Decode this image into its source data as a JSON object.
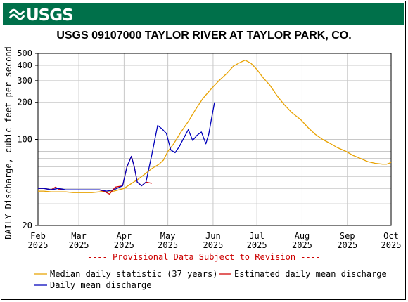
{
  "logo_text": "USGS",
  "colors": {
    "banner": "#00704a",
    "median": "#e8a202",
    "estimated": "#d10000",
    "daily": "#0000bb",
    "grid": "#c8c8c8",
    "provisional": "#cc0000"
  },
  "chart_data": {
    "type": "line",
    "title": "USGS 09107000 TAYLOR RIVER AT TAYLOR PARK, CO.",
    "ylabel": "DAILY Discharge, cubic feet per second",
    "y_scale": "log",
    "ylim": [
      20,
      500
    ],
    "y_ticks": [
      20,
      100,
      200,
      300,
      400,
      500
    ],
    "xlim": [
      "2025-02-01",
      "2025-10-01"
    ],
    "x_ticks": [
      {
        "date": "2025-02-01",
        "month": "Feb",
        "year": "2025"
      },
      {
        "date": "2025-03-01",
        "month": "Mar",
        "year": "2025"
      },
      {
        "date": "2025-04-01",
        "month": "Apr",
        "year": "2025"
      },
      {
        "date": "2025-05-01",
        "month": "May",
        "year": "2025"
      },
      {
        "date": "2025-06-01",
        "month": "Jun",
        "year": "2025"
      },
      {
        "date": "2025-07-01",
        "month": "Jul",
        "year": "2025"
      },
      {
        "date": "2025-08-01",
        "month": "Aug",
        "year": "2025"
      },
      {
        "date": "2025-09-01",
        "month": "Sep",
        "year": "2025"
      },
      {
        "date": "2025-10-01",
        "month": "Oct",
        "year": "2025"
      }
    ],
    "grid": true,
    "provisional_note": "---- Provisional Data Subject to Revision ----",
    "legend_position": "bottom",
    "series": [
      {
        "name": "Median daily statistic (37 years)",
        "points": [
          [
            "2025-02-01",
            38
          ],
          [
            "2025-02-05",
            38
          ],
          [
            "2025-02-10",
            37.5
          ],
          [
            "2025-02-15",
            37.5
          ],
          [
            "2025-02-20",
            37.5
          ],
          [
            "2025-02-25",
            37
          ],
          [
            "2025-03-01",
            37
          ],
          [
            "2025-03-05",
            37
          ],
          [
            "2025-03-10",
            37
          ],
          [
            "2025-03-15",
            37.5
          ],
          [
            "2025-03-20",
            38
          ],
          [
            "2025-03-25",
            38
          ],
          [
            "2025-04-01",
            40
          ],
          [
            "2025-04-05",
            43
          ],
          [
            "2025-04-10",
            47
          ],
          [
            "2025-04-15",
            52
          ],
          [
            "2025-04-20",
            58
          ],
          [
            "2025-04-25",
            63
          ],
          [
            "2025-04-28",
            68
          ],
          [
            "2025-05-01",
            80
          ],
          [
            "2025-05-05",
            92
          ],
          [
            "2025-05-10",
            115
          ],
          [
            "2025-05-15",
            140
          ],
          [
            "2025-05-20",
            175
          ],
          [
            "2025-05-25",
            215
          ],
          [
            "2025-05-31",
            260
          ],
          [
            "2025-06-05",
            300
          ],
          [
            "2025-06-10",
            340
          ],
          [
            "2025-06-15",
            395
          ],
          [
            "2025-06-20",
            425
          ],
          [
            "2025-06-23",
            440
          ],
          [
            "2025-06-27",
            415
          ],
          [
            "2025-07-01",
            370
          ],
          [
            "2025-07-05",
            320
          ],
          [
            "2025-07-10",
            275
          ],
          [
            "2025-07-15",
            225
          ],
          [
            "2025-07-20",
            190
          ],
          [
            "2025-07-25",
            165
          ],
          [
            "2025-07-31",
            145
          ],
          [
            "2025-08-05",
            125
          ],
          [
            "2025-08-10",
            110
          ],
          [
            "2025-08-15",
            100
          ],
          [
            "2025-08-20",
            93
          ],
          [
            "2025-08-25",
            86
          ],
          [
            "2025-08-31",
            80
          ],
          [
            "2025-09-05",
            74
          ],
          [
            "2025-09-10",
            70
          ],
          [
            "2025-09-15",
            66
          ],
          [
            "2025-09-20",
            64
          ],
          [
            "2025-09-25",
            63
          ],
          [
            "2025-09-28",
            63
          ],
          [
            "2025-10-01",
            65
          ]
        ]
      },
      {
        "name": "Estimated daily mean discharge",
        "points": [
          [
            "2025-02-01",
            40
          ],
          [
            "2025-02-05",
            40
          ],
          [
            "2025-02-10",
            39
          ],
          [
            "2025-02-13",
            41
          ],
          [
            "2025-02-16",
            39
          ],
          [
            "2025-02-20",
            39
          ],
          [
            "2025-02-25",
            39
          ],
          [
            "2025-03-01",
            39
          ],
          [
            "2025-03-05",
            39
          ],
          [
            "2025-03-10",
            39
          ],
          [
            "2025-03-15",
            39
          ],
          [
            "2025-03-18",
            38
          ],
          [
            "2025-03-22",
            36
          ],
          [
            "2025-03-26",
            41
          ],
          [
            "2025-03-31",
            42
          ],
          [
            "2025-04-03",
            60
          ],
          [
            "2025-04-06",
            73
          ],
          [
            "2025-04-08",
            60
          ],
          [
            "2025-04-10",
            45
          ],
          [
            "2025-04-13",
            42
          ],
          [
            "2025-04-16",
            45
          ],
          [
            "2025-04-20",
            44
          ]
        ]
      },
      {
        "name": "Daily mean discharge",
        "points": [
          [
            "2025-02-01",
            40
          ],
          [
            "2025-02-05",
            40
          ],
          [
            "2025-02-10",
            39
          ],
          [
            "2025-02-15",
            40
          ],
          [
            "2025-02-20",
            39
          ],
          [
            "2025-02-25",
            39
          ],
          [
            "2025-03-01",
            39
          ],
          [
            "2025-03-05",
            39
          ],
          [
            "2025-03-10",
            39
          ],
          [
            "2025-03-15",
            39
          ],
          [
            "2025-03-20",
            38
          ],
          [
            "2025-03-25",
            39
          ],
          [
            "2025-03-31",
            42
          ],
          [
            "2025-04-03",
            60
          ],
          [
            "2025-04-06",
            73
          ],
          [
            "2025-04-08",
            60
          ],
          [
            "2025-04-10",
            45
          ],
          [
            "2025-04-13",
            42
          ],
          [
            "2025-04-16",
            45
          ],
          [
            "2025-04-20",
            75
          ],
          [
            "2025-04-24",
            130
          ],
          [
            "2025-04-27",
            122
          ],
          [
            "2025-04-30",
            112
          ],
          [
            "2025-05-03",
            82
          ],
          [
            "2025-05-06",
            78
          ],
          [
            "2025-05-09",
            88
          ],
          [
            "2025-05-12",
            103
          ],
          [
            "2025-05-15",
            120
          ],
          [
            "2025-05-18",
            98
          ],
          [
            "2025-05-21",
            108
          ],
          [
            "2025-05-24",
            115
          ],
          [
            "2025-05-27",
            92
          ],
          [
            "2025-05-29",
            110
          ],
          [
            "2025-05-31",
            150
          ],
          [
            "2025-06-02",
            200
          ]
        ]
      }
    ]
  }
}
